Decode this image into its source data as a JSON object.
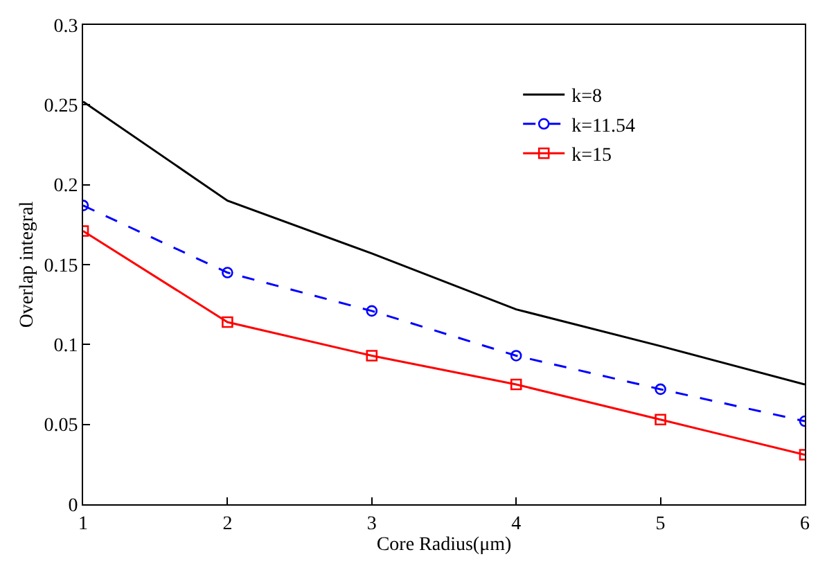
{
  "chart_data": {
    "type": "line",
    "xlabel": "Core Radius(μm)",
    "ylabel": "Overlap integral",
    "x": [
      1,
      2,
      3,
      4,
      5,
      6
    ],
    "series": [
      {
        "name": "k=8",
        "color": "#000000",
        "values": [
          0.252,
          0.19,
          0.157,
          0.122,
          0.099,
          0.075
        ],
        "marker": "none",
        "line_style": "solid"
      },
      {
        "name": "k=11.54",
        "color": "#0000ff",
        "values": [
          0.187,
          0.145,
          0.121,
          0.093,
          0.072,
          0.052
        ],
        "marker": "circle",
        "line_style": "dashed"
      },
      {
        "name": "k=15",
        "color": "#ff0000",
        "values": [
          0.171,
          0.114,
          0.093,
          0.075,
          0.053,
          0.031
        ],
        "marker": "square",
        "line_style": "solid"
      }
    ],
    "xlim": [
      1,
      6
    ],
    "xticks": [
      1,
      2,
      3,
      4,
      5,
      6
    ],
    "ylim": [
      0,
      0.3
    ],
    "yticks": [
      0,
      0.05,
      0.1,
      0.15,
      0.2,
      0.25,
      0.3
    ],
    "legend": "top right"
  }
}
